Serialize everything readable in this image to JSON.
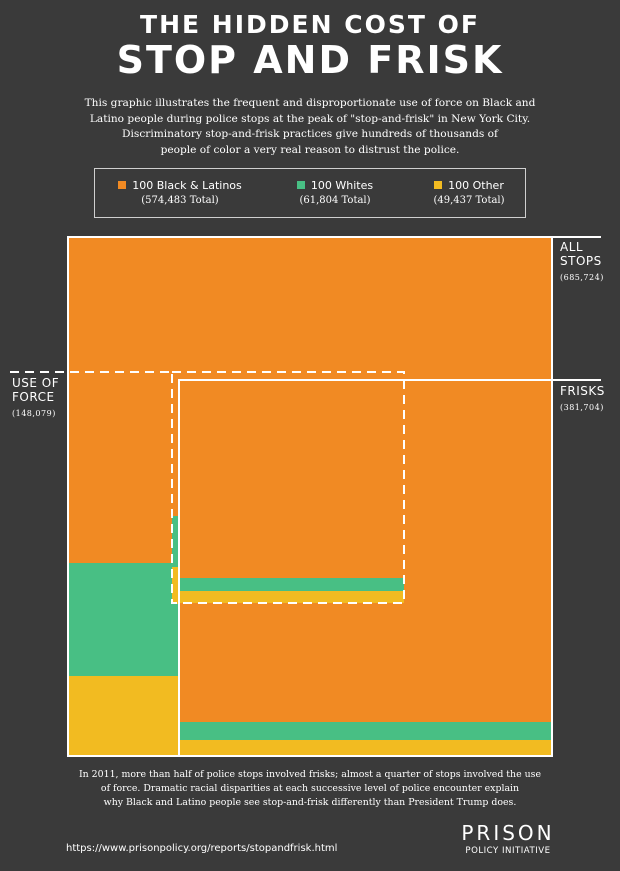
{
  "header": {
    "title_line1": "THE HIDDEN COST OF",
    "title_line2": "STOP AND FRISK",
    "intro_line1": "This graphic illustrates the frequent and disproportionate use of force on Black and",
    "intro_line2": "Latino people during police stops at the peak of \"stop-and-frisk\" in New York City.",
    "intro_line3": "Discriminatory stop-and-frisk practices give hundreds of thousands of",
    "intro_line4": "people of color a very real reason to distrust the police."
  },
  "legend": [
    {
      "label": "100 Black & Latinos",
      "total": "(574,483 Total)",
      "color": "#f18a23"
    },
    {
      "label": "100 Whites",
      "total": "(61,804 Total)",
      "color": "#48bf84"
    },
    {
      "label": "100 Other",
      "total": "(49,437 Total)",
      "color": "#f2bb21"
    }
  ],
  "labels": {
    "all_stops_line1": "ALL",
    "all_stops_line2": "STOPS",
    "all_stops_count": "(685,724)",
    "frisks": "FRISKS",
    "frisks_count": "(381,704)",
    "force_line1": "USE OF",
    "force_line2": "FORCE",
    "force_count": "(148,079)"
  },
  "footer": {
    "line1": "In 2011, more than half of police stops involved frisks; almost a quarter of stops involved the use",
    "line2": "of force. Dramatic racial disparities at each successive level of police encounter explain",
    "line3": "why Black and Latino people see stop-and-frisk differently than President Trump does.",
    "url": "https://www.prisonpolicy.org/reports/stopandfrisk.html",
    "logo_line1": "PRISON",
    "logo_line2": "POLICY INITIATIVE"
  },
  "colors": {
    "background": "#3a3a3a",
    "black_latino": "#f18a23",
    "white": "#48bf84",
    "other": "#f2bb21",
    "outline": "#ffffff"
  },
  "chart_data": {
    "type": "area",
    "unit": "stops",
    "groups": [
      {
        "name": "ALL STOPS",
        "total": 685724,
        "values": {
          "100 Black & Latinos": 574483,
          "100 Whites": 61804,
          "100 Other": 49437
        }
      },
      {
        "name": "FRISKS",
        "total": 381704
      },
      {
        "name": "USE OF FORCE",
        "total": 148079
      }
    ]
  }
}
